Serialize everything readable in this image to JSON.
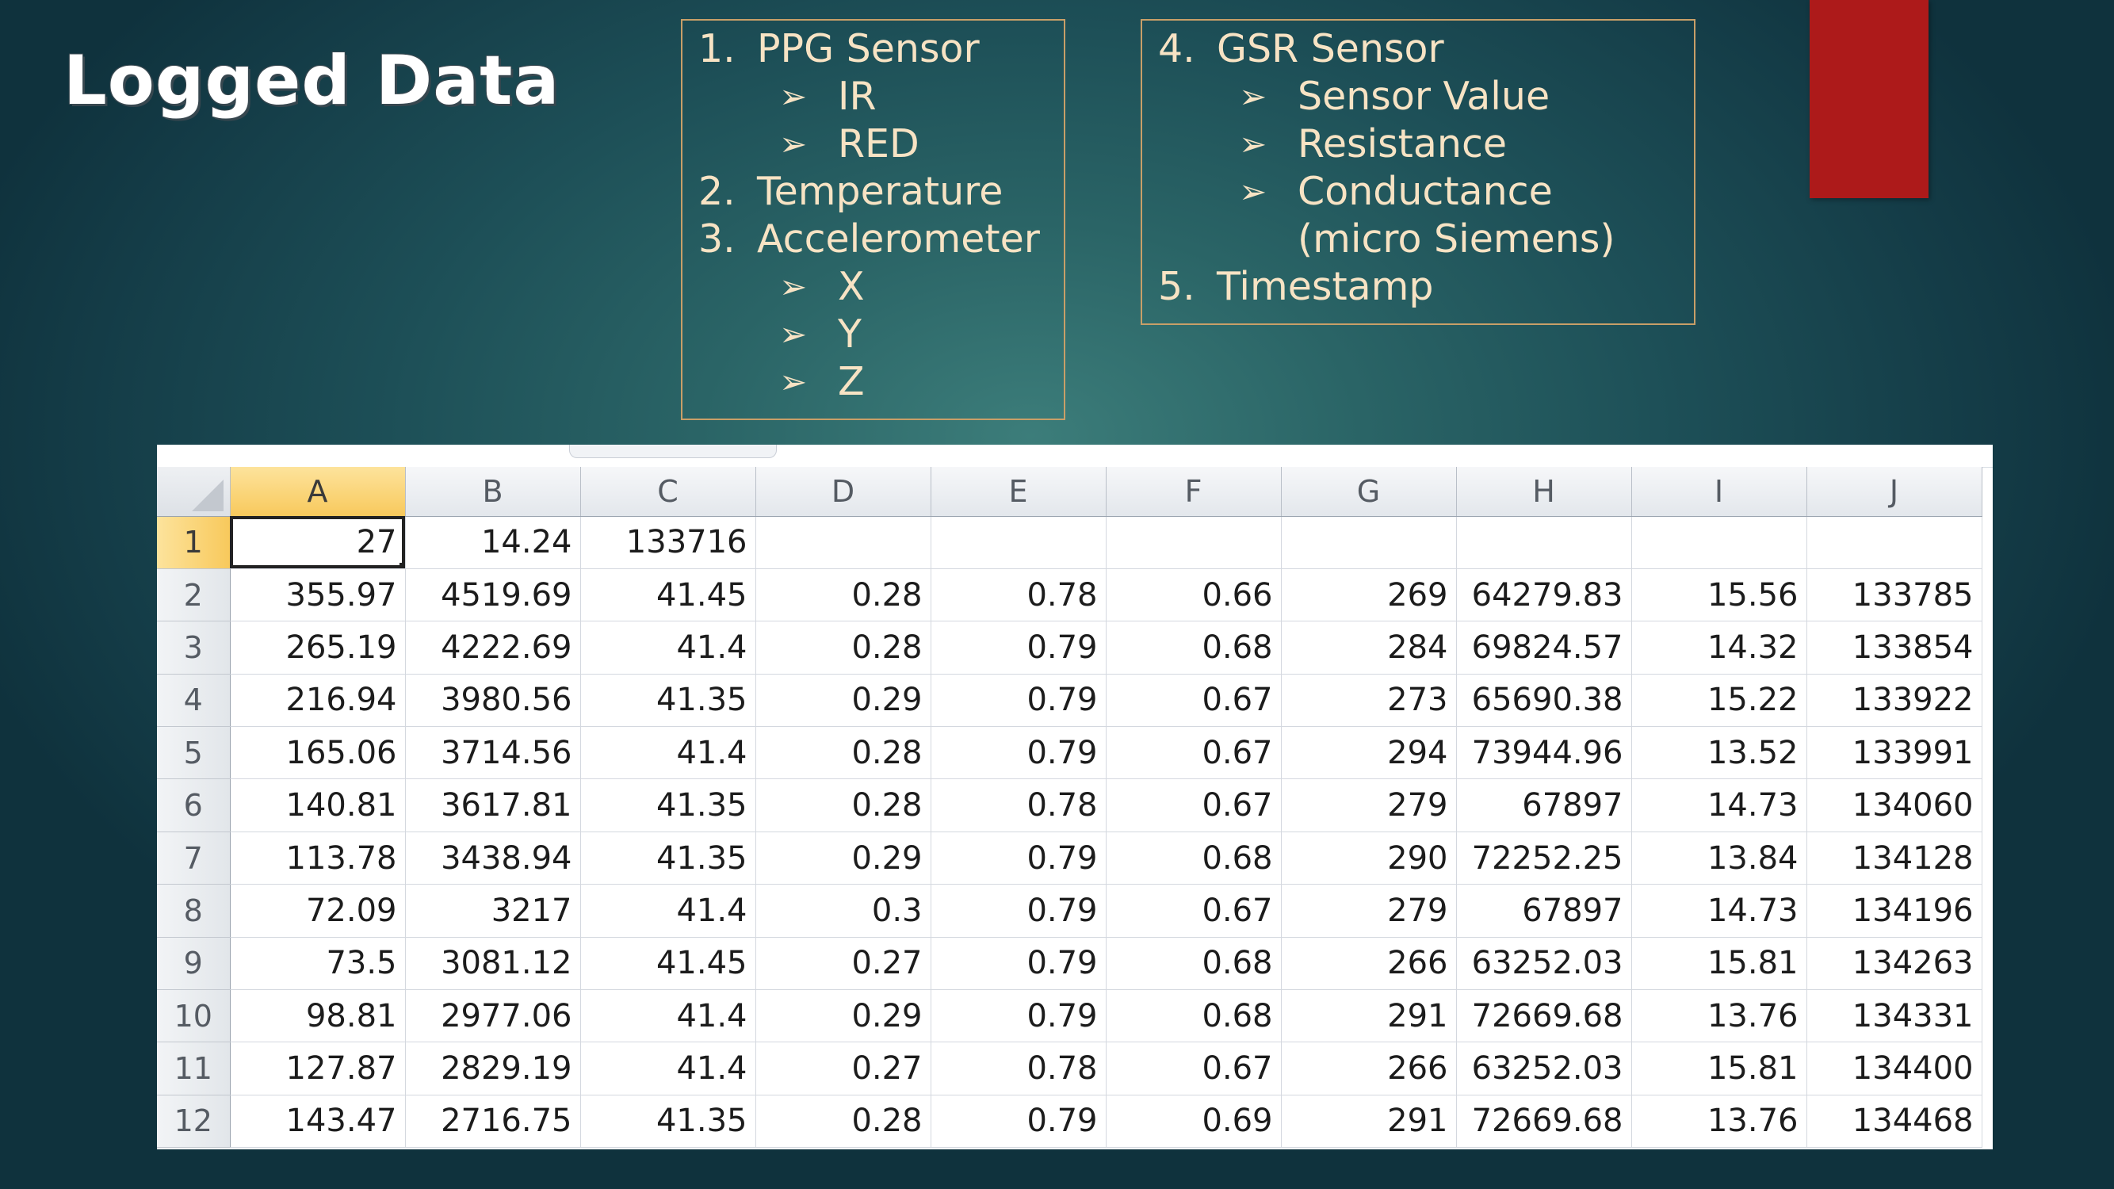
{
  "slide": {
    "title": "Logged Data"
  },
  "box1": {
    "lines": [
      {
        "num": "1.",
        "text": "PPG Sensor"
      },
      {
        "bullet": true,
        "text": "IR"
      },
      {
        "bullet": true,
        "text": "RED"
      },
      {
        "num": "2.",
        "text": "Temperature"
      },
      {
        "num": "3.",
        "text": "Accelerometer"
      },
      {
        "bullet": true,
        "text": "X"
      },
      {
        "bullet": true,
        "text": "Y"
      },
      {
        "bullet": true,
        "text": "Z"
      }
    ]
  },
  "box2": {
    "lines": [
      {
        "num": "4.",
        "text": "GSR Sensor"
      },
      {
        "bullet": true,
        "text": "Sensor Value"
      },
      {
        "bullet": true,
        "text": "Resistance"
      },
      {
        "bullet": true,
        "text": "Conductance"
      },
      {
        "cont": true,
        "text": "(micro Siemens)"
      },
      {
        "num": "5.",
        "text": "Timestamp"
      }
    ]
  },
  "bullet_glyph": "➢",
  "sheet": {
    "columns": [
      "A",
      "B",
      "C",
      "D",
      "E",
      "F",
      "G",
      "H",
      "I",
      "J"
    ],
    "active_column": "A",
    "active_row": "1",
    "rows": [
      {
        "num": "1",
        "cells": [
          "27",
          "14.24",
          "133716",
          "",
          "",
          "",
          "",
          "",
          "",
          ""
        ]
      },
      {
        "num": "2",
        "cells": [
          "355.97",
          "4519.69",
          "41.45",
          "0.28",
          "0.78",
          "0.66",
          "269",
          "64279.83",
          "15.56",
          "133785"
        ]
      },
      {
        "num": "3",
        "cells": [
          "265.19",
          "4222.69",
          "41.4",
          "0.28",
          "0.79",
          "0.68",
          "284",
          "69824.57",
          "14.32",
          "133854"
        ]
      },
      {
        "num": "4",
        "cells": [
          "216.94",
          "3980.56",
          "41.35",
          "0.29",
          "0.79",
          "0.67",
          "273",
          "65690.38",
          "15.22",
          "133922"
        ]
      },
      {
        "num": "5",
        "cells": [
          "165.06",
          "3714.56",
          "41.4",
          "0.28",
          "0.79",
          "0.67",
          "294",
          "73944.96",
          "13.52",
          "133991"
        ]
      },
      {
        "num": "6",
        "cells": [
          "140.81",
          "3617.81",
          "41.35",
          "0.28",
          "0.78",
          "0.67",
          "279",
          "67897",
          "14.73",
          "134060"
        ]
      },
      {
        "num": "7",
        "cells": [
          "113.78",
          "3438.94",
          "41.35",
          "0.29",
          "0.79",
          "0.68",
          "290",
          "72252.25",
          "13.84",
          "134128"
        ]
      },
      {
        "num": "8",
        "cells": [
          "72.09",
          "3217",
          "41.4",
          "0.3",
          "0.79",
          "0.67",
          "279",
          "67897",
          "14.73",
          "134196"
        ]
      },
      {
        "num": "9",
        "cells": [
          "73.5",
          "3081.12",
          "41.45",
          "0.27",
          "0.79",
          "0.68",
          "266",
          "63252.03",
          "15.81",
          "134263"
        ]
      },
      {
        "num": "10",
        "cells": [
          "98.81",
          "2977.06",
          "41.4",
          "0.29",
          "0.79",
          "0.68",
          "291",
          "72669.68",
          "13.76",
          "134331"
        ]
      },
      {
        "num": "11",
        "cells": [
          "127.87",
          "2829.19",
          "41.4",
          "0.27",
          "0.78",
          "0.67",
          "266",
          "63252.03",
          "15.81",
          "134400"
        ]
      },
      {
        "num": "12",
        "cells": [
          "143.47",
          "2716.75",
          "41.35",
          "0.28",
          "0.79",
          "0.69",
          "291",
          "72669.68",
          "13.76",
          "134468"
        ]
      }
    ]
  },
  "colors": {
    "accent_red": "#ad1a1a",
    "box_border": "#c89f68",
    "box_text": "#f7e3c4",
    "header_active": "#f8c95c"
  }
}
